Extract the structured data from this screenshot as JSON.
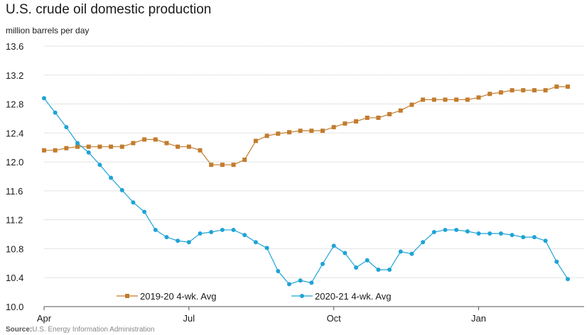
{
  "chart_data": {
    "type": "line",
    "title": "U.S. crude oil domestic production",
    "subtitle": "million barrels per day",
    "xlabel": "",
    "ylabel": "",
    "ylim": [
      10.0,
      13.6
    ],
    "yticks": [
      "10.0",
      "10.4",
      "10.8",
      "11.2",
      "11.6",
      "12.0",
      "12.4",
      "12.8",
      "13.2",
      "13.6"
    ],
    "xtick_labels": [
      "Apr",
      "Jul",
      "Oct",
      "Jan"
    ],
    "xtick_weeks": [
      0,
      13,
      26,
      39
    ],
    "grid": "horizontal",
    "legend_position": "bottom",
    "series": [
      {
        "name": "2019-20  4-wk. Avg",
        "color": "#c27c2d",
        "marker": "square",
        "x": [
          0,
          1,
          2,
          3,
          4,
          5,
          6,
          7,
          8,
          9,
          10,
          11,
          12,
          13,
          14,
          15,
          16,
          17,
          18,
          19,
          20,
          21,
          22,
          23,
          24,
          25,
          26,
          27,
          28,
          29,
          30,
          31,
          32,
          33,
          34,
          35,
          36,
          37,
          38,
          39,
          40,
          41,
          42,
          43,
          44,
          45,
          46,
          47
        ],
        "values": [
          12.16,
          12.16,
          12.19,
          12.21,
          12.21,
          12.21,
          12.21,
          12.21,
          12.26,
          12.31,
          12.31,
          12.26,
          12.21,
          12.21,
          12.16,
          11.96,
          11.96,
          11.96,
          12.03,
          12.29,
          12.36,
          12.39,
          12.41,
          12.43,
          12.43,
          12.43,
          12.48,
          12.53,
          12.56,
          12.61,
          12.61,
          12.66,
          12.71,
          12.79,
          12.86,
          12.86,
          12.86,
          12.86,
          12.86,
          12.89,
          12.94,
          12.96,
          12.99,
          12.99,
          12.99,
          12.99,
          13.04,
          13.04
        ]
      },
      {
        "name": "2020-21  4-wk. Avg",
        "color": "#1fa3d6",
        "marker": "circle",
        "x": [
          0,
          1,
          2,
          3,
          4,
          5,
          6,
          7,
          8,
          9,
          10,
          11,
          12,
          13,
          14,
          15,
          16,
          17,
          18,
          19,
          20,
          21,
          22,
          23,
          24,
          25,
          26,
          27,
          28,
          29,
          30,
          31,
          32,
          33,
          34,
          35,
          36,
          37,
          38,
          39,
          40,
          41,
          42,
          43,
          44,
          45,
          46,
          47
        ],
        "values": [
          12.88,
          12.68,
          12.48,
          12.26,
          12.13,
          11.96,
          11.78,
          11.61,
          11.44,
          11.31,
          11.06,
          10.96,
          10.91,
          10.89,
          11.01,
          11.03,
          11.06,
          11.06,
          10.99,
          10.89,
          10.81,
          10.49,
          10.31,
          10.36,
          10.33,
          10.59,
          10.84,
          10.74,
          10.54,
          10.64,
          10.51,
          10.51,
          10.76,
          10.73,
          10.89,
          11.03,
          11.06,
          11.06,
          11.04,
          11.01,
          11.01,
          11.01,
          10.99,
          10.96,
          10.96,
          10.91,
          10.62,
          10.38
        ]
      }
    ]
  },
  "source": {
    "label": "Source:",
    "text": "U.S. Energy Information Administration"
  }
}
